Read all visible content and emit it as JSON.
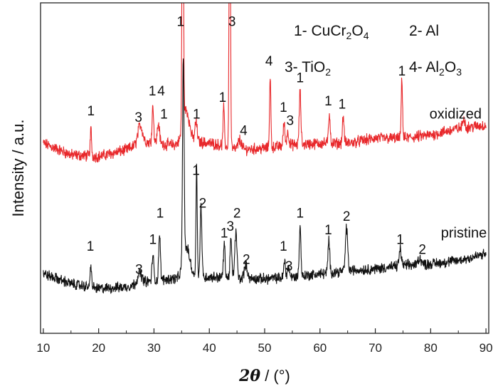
{
  "chart_data": {
    "type": "line",
    "title": "",
    "xlabel": "2θ / (°)",
    "xlabel_parts": {
      "symbol": "2θ",
      "unit": " / (°)"
    },
    "ylabel": "Intensity / a.u.",
    "xlim": [
      9.5,
      90.5
    ],
    "ylim": [
      0,
      100
    ],
    "xticks": [
      10,
      20,
      30,
      40,
      50,
      60,
      70,
      80,
      90
    ],
    "xtick_labels": [
      "10",
      "20",
      "30",
      "40",
      "50",
      "60",
      "70",
      "80",
      "90"
    ],
    "yticks_shown": false,
    "legend": [
      {
        "key": "1",
        "sep": "- ",
        "parts": [
          [
            "Cu",
            ""
          ],
          [
            "Cr",
            ""
          ],
          [
            "2",
            "sub"
          ],
          [
            "O",
            ""
          ],
          [
            "4",
            "sub"
          ]
        ],
        "text": "1- CuCr2O4"
      },
      {
        "key": "2",
        "sep": "- ",
        "parts": [
          [
            "Al",
            ""
          ]
        ],
        "text": "2- Al"
      },
      {
        "key": "3",
        "sep": "- ",
        "parts": [
          [
            "Ti",
            ""
          ],
          [
            "O",
            ""
          ],
          [
            "2",
            "sub"
          ]
        ],
        "text": "3- TiO2"
      },
      {
        "key": "4",
        "sep": "- ",
        "parts": [
          [
            "Al",
            ""
          ],
          [
            "2",
            "sub"
          ],
          [
            "O",
            ""
          ],
          [
            "3",
            "sub"
          ]
        ],
        "text": "4- Al2O3"
      }
    ],
    "series": [
      {
        "name": "oxidized",
        "color": "#e8282b",
        "baseline": [
          [
            10,
            57.5
          ],
          [
            15,
            54
          ],
          [
            20,
            53.5
          ],
          [
            25,
            55.5
          ],
          [
            28,
            58
          ],
          [
            33,
            57
          ],
          [
            38,
            58
          ],
          [
            42,
            57
          ],
          [
            45,
            55.5
          ],
          [
            50,
            56
          ],
          [
            55,
            57
          ],
          [
            60,
            57.5
          ],
          [
            65,
            57.5
          ],
          [
            70,
            59
          ],
          [
            75,
            59
          ],
          [
            80,
            60
          ],
          [
            85,
            62
          ],
          [
            90,
            63
          ]
        ],
        "noise": 1.4,
        "peaks": [
          {
            "pos": 18.6,
            "h": 8,
            "w": 0.12
          },
          {
            "pos": 27.5,
            "h": 5.5,
            "w": 0.4
          },
          {
            "pos": 29.8,
            "h": 11,
            "w": 0.15
          },
          {
            "pos": 30.8,
            "h": 6,
            "w": 0.2
          },
          {
            "pos": 35.2,
            "h": 108,
            "w": 0.12
          },
          {
            "pos": 35.8,
            "h": 10,
            "w": 0.6
          },
          {
            "pos": 37.6,
            "h": 6,
            "w": 0.2
          },
          {
            "pos": 42.6,
            "h": 12,
            "w": 0.12
          },
          {
            "pos": 43.7,
            "h": 90,
            "w": 0.12
          },
          {
            "pos": 45.5,
            "h": 3,
            "w": 0.3
          },
          {
            "pos": 51.0,
            "h": 21,
            "w": 0.12
          },
          {
            "pos": 53.5,
            "h": 7,
            "w": 0.15
          },
          {
            "pos": 54.2,
            "h": 4,
            "w": 0.2
          },
          {
            "pos": 56.4,
            "h": 16,
            "w": 0.15
          },
          {
            "pos": 61.7,
            "h": 9,
            "w": 0.15
          },
          {
            "pos": 64.2,
            "h": 8,
            "w": 0.15
          },
          {
            "pos": 74.8,
            "h": 18,
            "w": 0.12
          },
          {
            "pos": 86.0,
            "h": 3,
            "w": 0.2
          }
        ],
        "label": "oxidized"
      },
      {
        "name": "pristine",
        "color": "#111111",
        "baseline": [
          [
            10,
            18
          ],
          [
            15,
            15
          ],
          [
            20,
            13.5
          ],
          [
            25,
            14
          ],
          [
            28,
            15.5
          ],
          [
            33,
            16.5
          ],
          [
            38,
            17
          ],
          [
            42,
            17
          ],
          [
            45,
            16.5
          ],
          [
            50,
            16.5
          ],
          [
            55,
            17
          ],
          [
            60,
            18
          ],
          [
            65,
            19
          ],
          [
            70,
            19.5
          ],
          [
            75,
            20.5
          ],
          [
            80,
            21
          ],
          [
            85,
            22
          ],
          [
            90,
            24
          ]
        ],
        "noise": 1.3,
        "peaks": [
          {
            "pos": 18.6,
            "h": 7,
            "w": 0.12
          },
          {
            "pos": 27.4,
            "h": 3,
            "w": 0.4
          },
          {
            "pos": 29.8,
            "h": 8,
            "w": 0.15
          },
          {
            "pos": 31.0,
            "h": 14,
            "w": 0.15
          },
          {
            "pos": 35.3,
            "h": 62,
            "w": 0.14
          },
          {
            "pos": 35.9,
            "h": 9,
            "w": 0.6
          },
          {
            "pos": 37.7,
            "h": 33,
            "w": 0.12
          },
          {
            "pos": 38.5,
            "h": 22,
            "w": 0.15
          },
          {
            "pos": 42.7,
            "h": 10,
            "w": 0.15
          },
          {
            "pos": 43.9,
            "h": 12,
            "w": 0.15
          },
          {
            "pos": 44.8,
            "h": 14,
            "w": 0.2
          },
          {
            "pos": 46.6,
            "h": 4,
            "w": 0.3
          },
          {
            "pos": 53.6,
            "h": 5,
            "w": 0.15
          },
          {
            "pos": 54.3,
            "h": 3,
            "w": 0.2
          },
          {
            "pos": 56.4,
            "h": 15,
            "w": 0.15
          },
          {
            "pos": 61.6,
            "h": 10,
            "w": 0.15
          },
          {
            "pos": 64.8,
            "h": 13,
            "w": 0.2
          },
          {
            "pos": 74.5,
            "h": 5,
            "w": 0.2
          },
          {
            "pos": 78.0,
            "h": 2,
            "w": 0.3
          }
        ],
        "label": "pristine"
      }
    ],
    "annotations": [
      {
        "series": "oxidized",
        "text": "1",
        "x": 18.6,
        "y": 66
      },
      {
        "series": "oxidized",
        "text": "3",
        "x": 27.2,
        "y": 64
      },
      {
        "series": "oxidized",
        "text": "1",
        "x": 29.7,
        "y": 72
      },
      {
        "series": "oxidized",
        "text": "4",
        "x": 31.3,
        "y": 72
      },
      {
        "series": "oxidized",
        "text": "1",
        "x": 31.8,
        "y": 65
      },
      {
        "series": "oxidized",
        "text": "1",
        "x": 34.8,
        "y": 93
      },
      {
        "series": "oxidized",
        "text": "1",
        "x": 37.7,
        "y": 65
      },
      {
        "series": "oxidized",
        "text": "1",
        "x": 42.4,
        "y": 70
      },
      {
        "series": "oxidized",
        "text": "3",
        "x": 44.1,
        "y": 93
      },
      {
        "series": "oxidized",
        "text": "4",
        "x": 46.2,
        "y": 60
      },
      {
        "series": "oxidized",
        "text": "4",
        "x": 50.8,
        "y": 81
      },
      {
        "series": "oxidized",
        "text": "1",
        "x": 53.4,
        "y": 67
      },
      {
        "series": "oxidized",
        "text": "3",
        "x": 54.6,
        "y": 63
      },
      {
        "series": "oxidized",
        "text": "1",
        "x": 56.4,
        "y": 76
      },
      {
        "series": "oxidized",
        "text": "1",
        "x": 61.5,
        "y": 69
      },
      {
        "series": "oxidized",
        "text": "1",
        "x": 64.0,
        "y": 68
      },
      {
        "series": "oxidized",
        "text": "1",
        "x": 74.8,
        "y": 78
      },
      {
        "series": "pristine",
        "text": "1",
        "x": 18.5,
        "y": 25
      },
      {
        "series": "pristine",
        "text": "3",
        "x": 27.3,
        "y": 18
      },
      {
        "series": "pristine",
        "text": "1",
        "x": 29.8,
        "y": 27
      },
      {
        "series": "pristine",
        "text": "1",
        "x": 31.1,
        "y": 35
      },
      {
        "series": "pristine",
        "text": "1",
        "x": 37.6,
        "y": 48
      },
      {
        "series": "pristine",
        "text": "2",
        "x": 38.8,
        "y": 38
      },
      {
        "series": "pristine",
        "text": "1",
        "x": 42.7,
        "y": 29
      },
      {
        "series": "pristine",
        "text": "3",
        "x": 43.8,
        "y": 31
      },
      {
        "series": "pristine",
        "text": "2",
        "x": 45.0,
        "y": 35
      },
      {
        "series": "pristine",
        "text": "2",
        "x": 46.7,
        "y": 21
      },
      {
        "series": "pristine",
        "text": "1",
        "x": 53.4,
        "y": 25
      },
      {
        "series": "pristine",
        "text": "3",
        "x": 54.4,
        "y": 19
      },
      {
        "series": "pristine",
        "text": "1",
        "x": 56.4,
        "y": 35
      },
      {
        "series": "pristine",
        "text": "1",
        "x": 61.5,
        "y": 30
      },
      {
        "series": "pristine",
        "text": "2",
        "x": 64.8,
        "y": 34
      },
      {
        "series": "pristine",
        "text": "1",
        "x": 74.5,
        "y": 27
      },
      {
        "series": "pristine",
        "text": "2",
        "x": 78.5,
        "y": 24
      }
    ],
    "series_labels": [
      {
        "text": "oxidized",
        "x": 84.5,
        "y": 65
      },
      {
        "text": "pristine",
        "x": 86.0,
        "y": 29
      }
    ]
  }
}
